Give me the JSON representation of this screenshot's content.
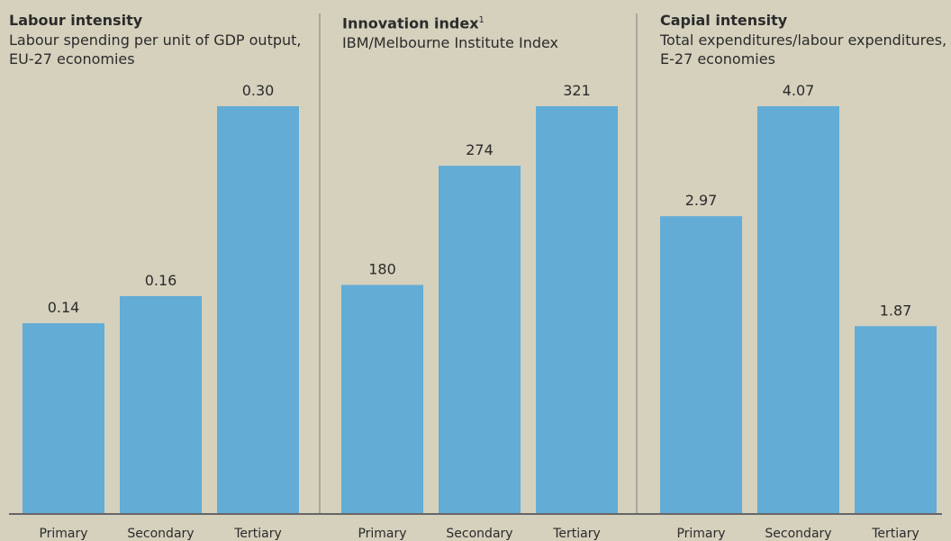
{
  "chart_data": [
    {
      "type": "bar",
      "title": "Labour intensity",
      "subtitle": "Labour spending per unit of GDP output, EU-27 economies",
      "categories": [
        "Primary",
        "Secondary",
        "Tertiary"
      ],
      "values": [
        0.14,
        0.16,
        0.3
      ],
      "value_labels": [
        "0.14",
        "0.16",
        "0.30"
      ],
      "color": "#62acd5"
    },
    {
      "type": "bar",
      "title": "Innovation index",
      "title_superscript": "1",
      "subtitle": "IBM/Melbourne Institute Index",
      "categories": [
        "Primary",
        "Secondary",
        "Tertiary"
      ],
      "values": [
        180,
        274,
        321
      ],
      "color": "#62acd5"
    },
    {
      "type": "bar",
      "title": "Capial intensity",
      "subtitle": "Total expenditures/labour expenditures, E-27 economies",
      "categories": [
        "Primary",
        "Secondary",
        "Tertiary"
      ],
      "values": [
        2.97,
        4.07,
        1.87
      ],
      "color": "#62acd5"
    }
  ]
}
